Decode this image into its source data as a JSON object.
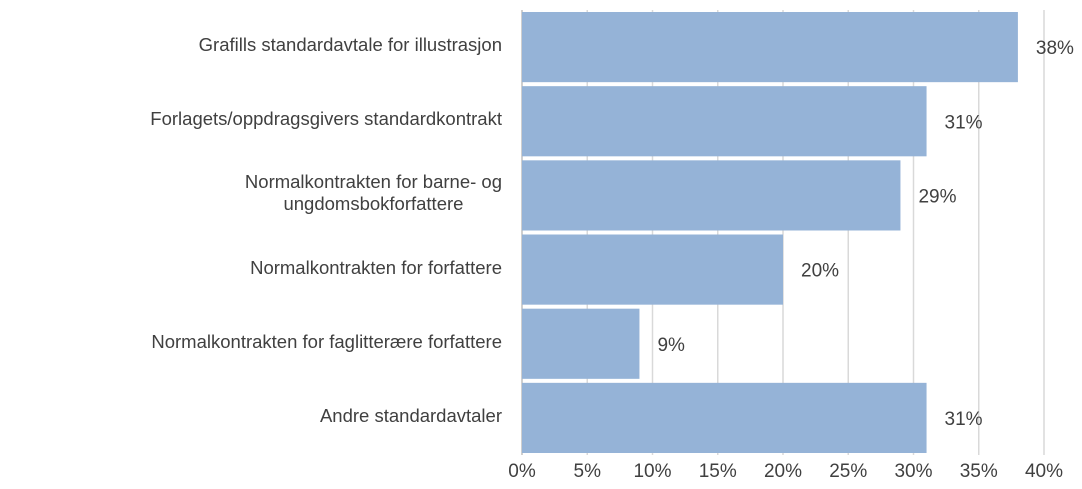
{
  "chart_data": {
    "type": "bar",
    "orientation": "horizontal",
    "categories": [
      "Grafills standardavtale for illustrasjon",
      "Forlagets/oppdragsgivers standardkontrakt",
      "Normalkontrakten for barne- og\nungdomsbokforfattere",
      "Normalkontrakten for forfattere",
      "Normalkontrakten for faglitterære forfattere",
      "Andre standardavtaler"
    ],
    "values": [
      38,
      31,
      29,
      20,
      9,
      31
    ],
    "value_labels": [
      "38%",
      "31%",
      "29%",
      "20%",
      "9%",
      "31%"
    ],
    "color": "#95b3d7",
    "xlim": [
      0,
      40
    ],
    "xticks": [
      {
        "value": 0,
        "label": "0%"
      },
      {
        "value": 5,
        "label": "5%"
      },
      {
        "value": 10,
        "label": "10%"
      },
      {
        "value": 15,
        "label": "15%"
      },
      {
        "value": 20,
        "label": "20%"
      },
      {
        "value": 25,
        "label": "25%"
      },
      {
        "value": 30,
        "label": "30%"
      },
      {
        "value": 35,
        "label": "35%"
      },
      {
        "value": 40,
        "label": "40%"
      }
    ],
    "grid": true
  }
}
